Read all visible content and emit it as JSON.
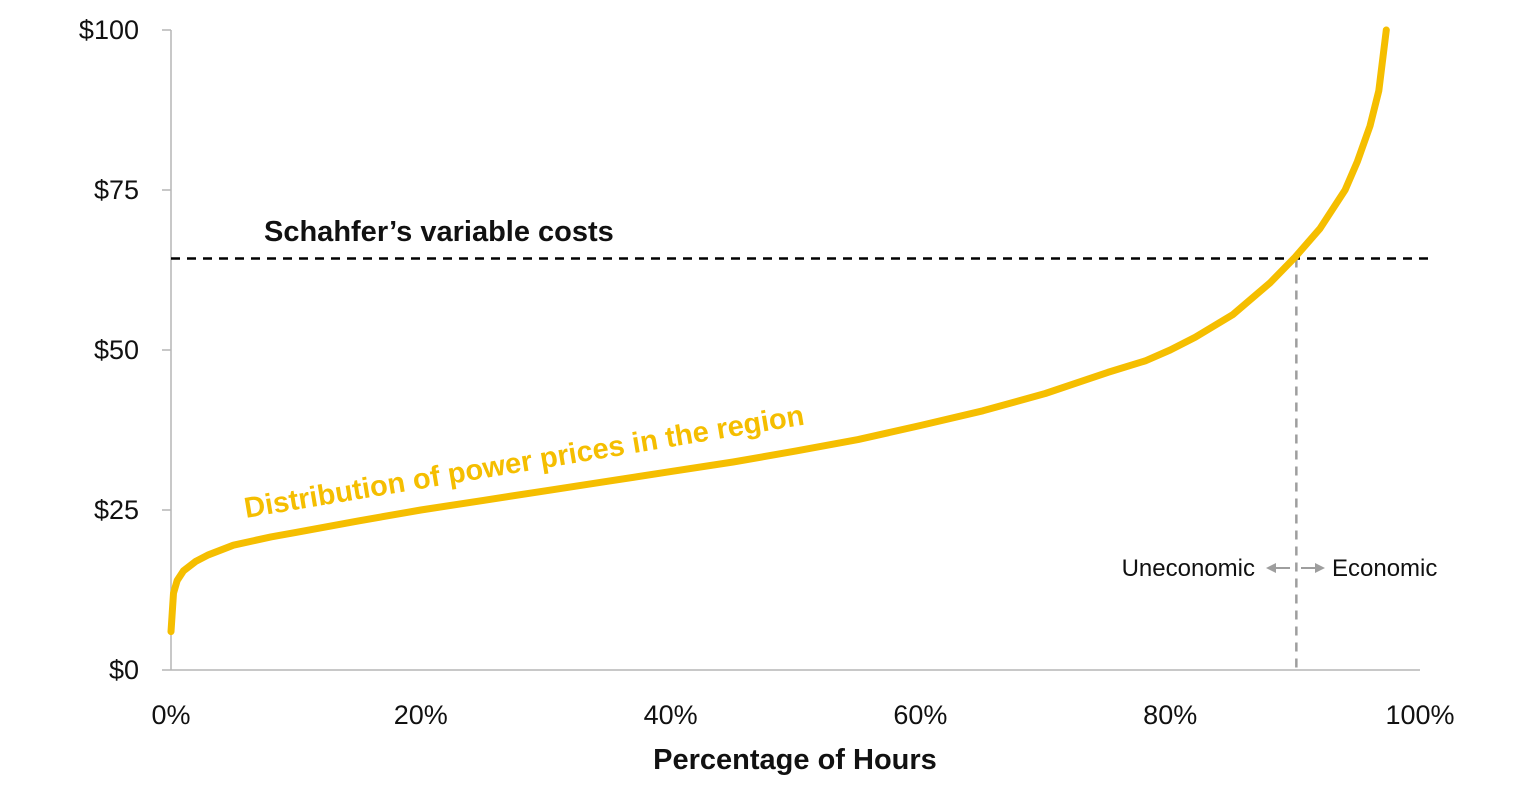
{
  "chart_data": {
    "type": "line",
    "xlabel": "Percentage of Hours",
    "ylabel": "",
    "xlim": [
      0,
      100
    ],
    "ylim": [
      0,
      100
    ],
    "x_ticks": [
      "0%",
      "20%",
      "40%",
      "60%",
      "80%",
      "100%"
    ],
    "x_tick_values": [
      0,
      20,
      40,
      60,
      80,
      100
    ],
    "y_ticks": [
      "$0",
      "$25",
      "$50",
      "$75",
      "$100"
    ],
    "y_tick_values": [
      0,
      25,
      50,
      75,
      100
    ],
    "grid": false,
    "series": [
      {
        "name": "Distribution of power prices in the region",
        "color": "#F5BE00",
        "x": [
          0,
          0.2,
          0.5,
          1,
          2,
          3,
          5,
          8,
          10,
          15,
          20,
          25,
          30,
          35,
          40,
          45,
          50,
          55,
          60,
          65,
          70,
          75,
          78,
          80,
          82,
          85,
          88,
          90,
          92,
          94,
          95,
          96,
          96.7,
          97.3
        ],
        "y": [
          6,
          12,
          14,
          15.5,
          17,
          18,
          19.5,
          20.8,
          21.5,
          23.3,
          25,
          26.5,
          28,
          29.5,
          31,
          32.5,
          34.2,
          36,
          38.2,
          40.5,
          43.2,
          46.5,
          48.3,
          50,
          52,
          55.5,
          60.5,
          64.5,
          69,
          75,
          79.5,
          85,
          90.5,
          100
        ]
      }
    ],
    "reference_line": {
      "label": "Schahfer’s variable costs",
      "y": 64.3,
      "color": "#000000"
    },
    "breakeven": {
      "x": 90.1,
      "color": "#9e9e9e",
      "left_label": "Uneconomic",
      "right_label": "Economic"
    }
  }
}
